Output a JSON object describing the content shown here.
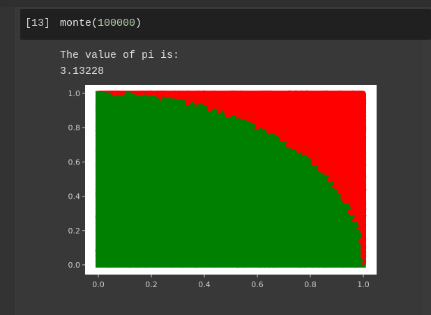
{
  "cell": {
    "prompt": "[13]",
    "code_func": "monte(",
    "code_arg": "100000",
    "code_close": ")"
  },
  "output": {
    "line1": "The value of pi is:",
    "line2": "3.13228"
  },
  "colors": {
    "inside": "#008000",
    "outside": "#ff0000",
    "background": "#383838",
    "cell_bg": "#202020"
  },
  "chart_data": {
    "type": "scatter",
    "title": "",
    "xlabel": "",
    "ylabel": "",
    "xlim": [
      0.0,
      1.0
    ],
    "ylim": [
      0.0,
      1.0
    ],
    "xticks": [
      "0.0",
      "0.2",
      "0.4",
      "0.6",
      "0.8",
      "1.0"
    ],
    "yticks": [
      "0.0",
      "0.2",
      "0.4",
      "0.6",
      "0.8",
      "1.0"
    ],
    "grid": false,
    "legend": "none",
    "series": [
      {
        "color": "#008000",
        "region": "x^2 + y^2 <= 1"
      },
      {
        "color": "#ff0000",
        "region": "x^2 + y^2 > 1"
      }
    ]
  }
}
